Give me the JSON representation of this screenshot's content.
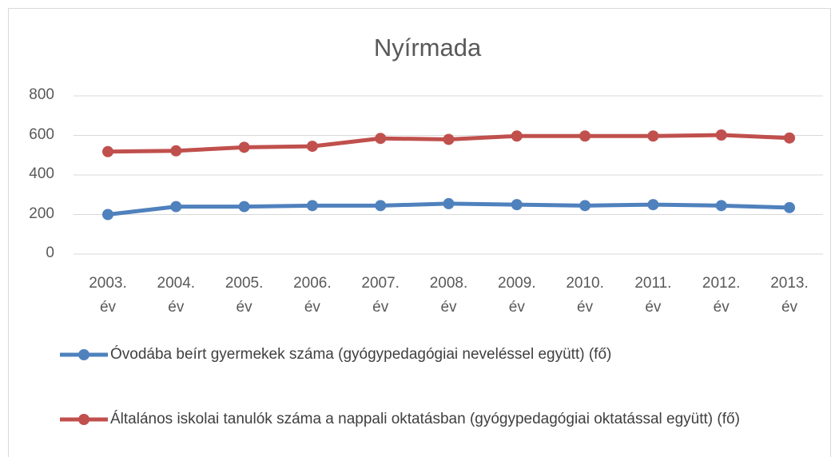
{
  "chart_data": {
    "type": "line",
    "title": "Nyírmada",
    "categories": [
      "2003. év",
      "2004. év",
      "2005. év",
      "2006. év",
      "2007. év",
      "2008. év",
      "2009. év",
      "2010. év",
      "2011. év",
      "2012. év",
      "2013. év"
    ],
    "series": [
      {
        "name": "Óvodába beírt gyermekek száma (gyógypedagógiai neveléssel együtt) (fő)",
        "color": "#4f81bd",
        "values": [
          200,
          240,
          240,
          245,
          245,
          255,
          250,
          245,
          250,
          245,
          235
        ]
      },
      {
        "name": "Általános iskolai tanulók száma a nappali oktatásban (gyógypedagógiai oktatással együtt) (fő)",
        "color": "#c0504d",
        "values": [
          518,
          522,
          540,
          545,
          585,
          580,
          597,
          597,
          597,
          602,
          587
        ]
      }
    ],
    "ylim": [
      0,
      800
    ],
    "yticks": [
      0,
      200,
      400,
      600,
      800
    ],
    "grid": true
  }
}
